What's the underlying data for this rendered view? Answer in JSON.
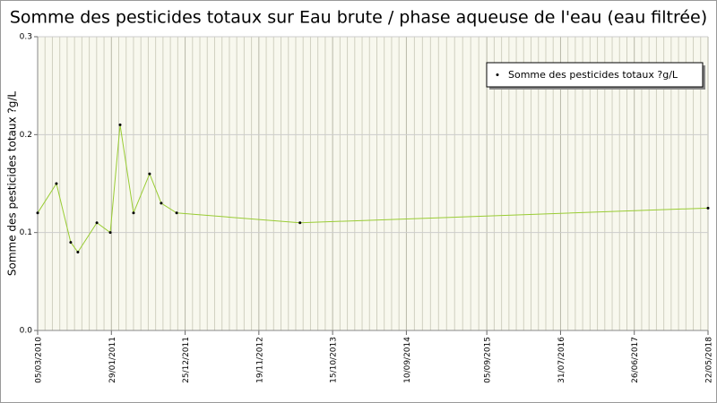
{
  "chart_data": {
    "type": "line",
    "title": "Somme des pesticides totaux sur Eau brute / phase aqueuse de l'eau (eau filtrée)",
    "y_label": "Somme des pesticides totaux ?g/L",
    "x": [
      "05/03/2010",
      "28/05/2010",
      "31/07/2010",
      "01/09/2010",
      "25/11/2010",
      "24/01/2011",
      "09/03/2011",
      "08/05/2011",
      "19/07/2011",
      "09/09/2011",
      "17/11/2011",
      "22/05/2013",
      "22/05/2018"
    ],
    "series": [
      {
        "name": "Somme des pesticides totaux ?g/L",
        "color": "#99cc33",
        "values": [
          0.12,
          0.15,
          0.09,
          0.08,
          0.11,
          0.1,
          0.21,
          0.12,
          0.16,
          0.13,
          0.12,
          0.11,
          0.125
        ]
      }
    ],
    "xlim": [
      "05/03/2010",
      "22/05/2018"
    ],
    "xticks": [
      "05/03/2010",
      "29/01/2011",
      "25/12/2011",
      "19/11/2012",
      "15/10/2013",
      "10/09/2014",
      "05/09/2015",
      "31/07/2016",
      "26/06/2017",
      "22/05/2018"
    ],
    "ylim": [
      0,
      0.3
    ],
    "yticks": [
      {
        "value": 0,
        "label": "0.0"
      },
      0.1,
      0.2,
      0.3
    ],
    "grid": true,
    "legend": "top-right"
  }
}
